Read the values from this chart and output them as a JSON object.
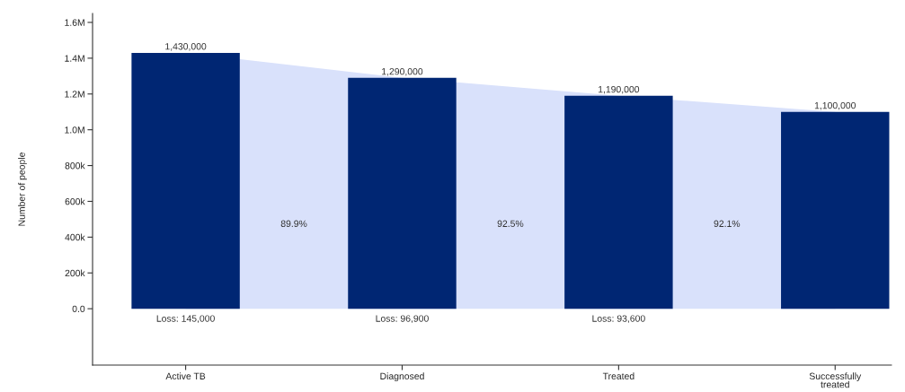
{
  "chart_data": {
    "type": "bar",
    "ylabel": "Number of people",
    "categories": [
      "Active TB",
      "Diagnosed",
      "Treated",
      "Successfully\ntreated"
    ],
    "series": [
      {
        "type": "area",
        "color": "#d9e1fb",
        "values": [
          1430000,
          1290000,
          1190000,
          1100000
        ]
      },
      {
        "color": "#002673",
        "values": [
          1430000,
          1290000,
          1190000,
          1100000
        ],
        "value_labels": [
          "1,430,000",
          "1,290,000",
          "1,190,000",
          "1,100,000"
        ]
      }
    ],
    "ylim": [
      -315000,
      1650000
    ],
    "yticks": [
      {
        "value": 0,
        "label": "0.0"
      },
      {
        "value": 200000,
        "label": "200k"
      },
      {
        "value": 400000,
        "label": "400k"
      },
      {
        "value": 600000,
        "label": "600k"
      },
      {
        "value": 800000,
        "label": "800k"
      },
      {
        "value": 1000000,
        "label": "1.0M"
      },
      {
        "value": 1200000,
        "label": "1.2M"
      },
      {
        "value": 1400000,
        "label": "1.4M"
      },
      {
        "value": 1600000,
        "label": "1.6M"
      }
    ],
    "annotations": [
      "Loss: 145,000",
      "89.9%",
      "Loss: 96,900",
      "92.5%",
      "Loss: 93,600",
      "92.1%"
    ],
    "grid": false,
    "legend": false
  }
}
